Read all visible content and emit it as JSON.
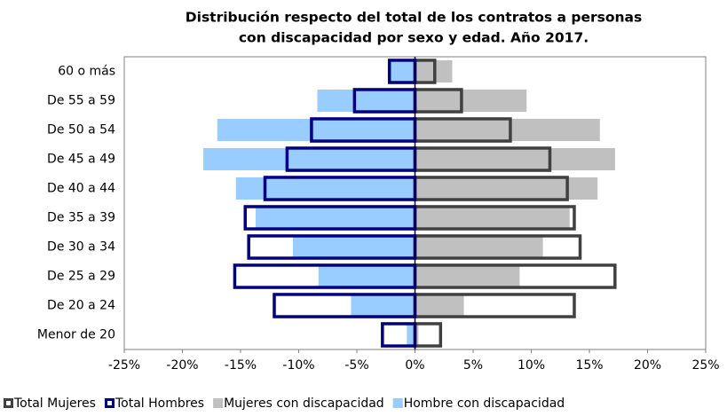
{
  "chart_data": {
    "type": "pyramid",
    "title": [
      "Distribución respecto del total de los contratos a personas",
      "con discapacidad por sexo y edad. Año 2017."
    ],
    "categories": [
      "60 o más",
      "De 55 a 59",
      "De 50 a  54",
      "De 45 a 49",
      "De 40 a 44",
      "De 35 a 39",
      "De 30 a 34",
      "De 25 a 29",
      "De 20 a 24",
      "Menor de 20"
    ],
    "series": [
      {
        "name": "Total Mujeres",
        "color": "#404040",
        "style": "outline",
        "values": [
          1.7,
          4.0,
          8.2,
          11.6,
          13.1,
          13.7,
          14.2,
          17.2,
          13.7,
          2.2
        ]
      },
      {
        "name": "Total Hombres",
        "color": "#000080",
        "style": "outline",
        "values": [
          -2.2,
          -5.2,
          -8.9,
          -11.0,
          -12.9,
          -14.6,
          -14.3,
          -15.5,
          -12.1,
          -2.8
        ]
      },
      {
        "name": "Mujeres con discapacidad",
        "color": "#c0c0c0",
        "style": "fill",
        "values": [
          3.2,
          9.6,
          15.9,
          17.2,
          15.7,
          13.3,
          11.0,
          9.0,
          4.2,
          0.3
        ]
      },
      {
        "name": "Hombre con discapacidad",
        "color": "#99ccff",
        "style": "fill",
        "values": [
          -2.1,
          -8.4,
          -17.0,
          -18.2,
          -15.4,
          -13.7,
          -10.5,
          -8.3,
          -5.5,
          -0.7
        ]
      }
    ],
    "xlim": [
      -25,
      25
    ],
    "xticks": [
      {
        "value": -25,
        "label": "-25%"
      },
      {
        "value": -20,
        "label": "-20%"
      },
      {
        "value": -15,
        "label": "-15%"
      },
      {
        "value": -10,
        "label": "-10%"
      },
      {
        "value": -5,
        "label": "-5%"
      },
      {
        "value": 0,
        "label": "0%"
      },
      {
        "value": 5,
        "label": "5%"
      },
      {
        "value": 10,
        "label": "10%"
      },
      {
        "value": 15,
        "label": "15%"
      },
      {
        "value": 20,
        "label": "20%"
      },
      {
        "value": 25,
        "label": "25%"
      }
    ]
  }
}
